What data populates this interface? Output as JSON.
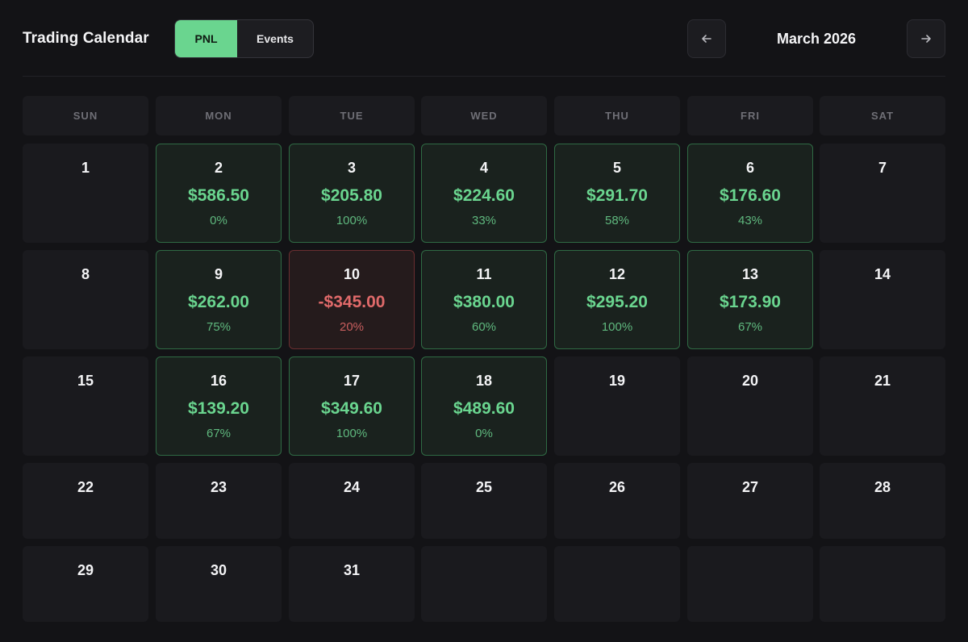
{
  "header": {
    "title": "Trading Calendar",
    "toggle": {
      "active": "PNL",
      "inactive": "Events"
    },
    "month": "March 2026",
    "prev_icon": "arrow-left-icon",
    "next_icon": "arrow-right-icon"
  },
  "colors": {
    "accent_green": "#6ad58f",
    "loss_red": "#e06a6a",
    "background": "#131316"
  },
  "weekdays": [
    "SUN",
    "MON",
    "TUE",
    "WED",
    "THU",
    "FRI",
    "SAT"
  ],
  "weeks": [
    [
      {
        "day": "1"
      },
      {
        "day": "2",
        "pnl": "$586.50",
        "pct": "0%",
        "type": "pos"
      },
      {
        "day": "3",
        "pnl": "$205.80",
        "pct": "100%",
        "type": "pos"
      },
      {
        "day": "4",
        "pnl": "$224.60",
        "pct": "33%",
        "type": "pos"
      },
      {
        "day": "5",
        "pnl": "$291.70",
        "pct": "58%",
        "type": "pos"
      },
      {
        "day": "6",
        "pnl": "$176.60",
        "pct": "43%",
        "type": "pos"
      },
      {
        "day": "7"
      }
    ],
    [
      {
        "day": "8"
      },
      {
        "day": "9",
        "pnl": "$262.00",
        "pct": "75%",
        "type": "pos"
      },
      {
        "day": "10",
        "pnl": "-$345.00",
        "pct": "20%",
        "type": "neg"
      },
      {
        "day": "11",
        "pnl": "$380.00",
        "pct": "60%",
        "type": "pos"
      },
      {
        "day": "12",
        "pnl": "$295.20",
        "pct": "100%",
        "type": "pos"
      },
      {
        "day": "13",
        "pnl": "$173.90",
        "pct": "67%",
        "type": "pos"
      },
      {
        "day": "14"
      }
    ],
    [
      {
        "day": "15"
      },
      {
        "day": "16",
        "pnl": "$139.20",
        "pct": "67%",
        "type": "pos"
      },
      {
        "day": "17",
        "pnl": "$349.60",
        "pct": "100%",
        "type": "pos"
      },
      {
        "day": "18",
        "pnl": "$489.60",
        "pct": "0%",
        "type": "pos"
      },
      {
        "day": "19"
      },
      {
        "day": "20"
      },
      {
        "day": "21"
      }
    ],
    [
      {
        "day": "22"
      },
      {
        "day": "23"
      },
      {
        "day": "24"
      },
      {
        "day": "25"
      },
      {
        "day": "26"
      },
      {
        "day": "27"
      },
      {
        "day": "28"
      }
    ],
    [
      {
        "day": "29"
      },
      {
        "day": "30"
      },
      {
        "day": "31"
      },
      {
        "day": ""
      },
      {
        "day": ""
      },
      {
        "day": ""
      },
      {
        "day": ""
      }
    ]
  ]
}
